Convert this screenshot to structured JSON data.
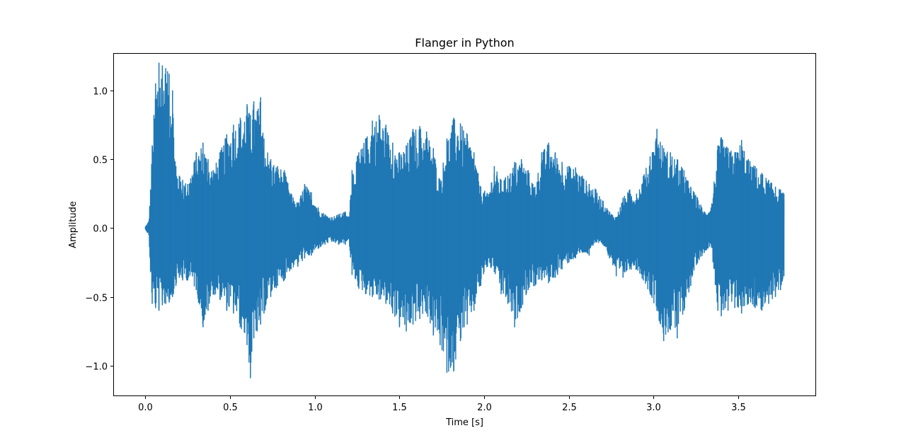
{
  "chart_data": {
    "type": "line",
    "title": "Flanger in Python",
    "xlabel": "Time [s]",
    "ylabel": "Amplitude",
    "xlim": [
      -0.19,
      3.96
    ],
    "ylim": [
      -1.22,
      1.27
    ],
    "x_ticks": [
      0.0,
      0.5,
      1.0,
      1.5,
      2.0,
      2.5,
      3.0,
      3.5
    ],
    "x_tick_labels": [
      "0.0",
      "0.5",
      "1.0",
      "1.5",
      "2.0",
      "2.5",
      "3.0",
      "3.5"
    ],
    "y_ticks": [
      1.0,
      0.5,
      0.0,
      -0.5,
      -1.0
    ],
    "y_tick_labels": [
      "1.0",
      "0.5",
      "0.0",
      "−0.5",
      "−1.0"
    ],
    "grid": false,
    "legend": "none",
    "series": [
      {
        "color": "#1f77b4",
        "envelope": {
          "x": [
            0.0,
            0.02,
            0.03,
            0.04,
            0.06,
            0.08,
            0.1,
            0.12,
            0.14,
            0.16,
            0.18,
            0.2,
            0.22,
            0.25,
            0.3,
            0.34,
            0.37,
            0.4,
            0.44,
            0.48,
            0.52,
            0.56,
            0.6,
            0.62,
            0.64,
            0.66,
            0.68,
            0.7,
            0.74,
            0.78,
            0.82,
            0.86,
            0.9,
            0.94,
            0.98,
            1.02,
            1.06,
            1.1,
            1.14,
            1.18,
            1.2,
            1.22,
            1.26,
            1.3,
            1.34,
            1.38,
            1.42,
            1.46,
            1.5,
            1.54,
            1.58,
            1.62,
            1.66,
            1.7,
            1.74,
            1.78,
            1.82,
            1.86,
            1.9,
            1.94,
            1.98,
            2.02,
            2.06,
            2.1,
            2.14,
            2.18,
            2.22,
            2.26,
            2.3,
            2.34,
            2.38,
            2.42,
            2.46,
            2.5,
            2.54,
            2.58,
            2.62,
            2.66,
            2.7,
            2.74,
            2.78,
            2.82,
            2.86,
            2.9,
            2.94,
            2.98,
            3.02,
            3.06,
            3.1,
            3.14,
            3.18,
            3.22,
            3.26,
            3.3,
            3.34,
            3.38,
            3.4,
            3.44,
            3.48,
            3.52,
            3.56,
            3.6,
            3.64,
            3.68,
            3.72,
            3.75,
            3.77
          ],
          "upper": [
            0.01,
            0.05,
            0.28,
            0.6,
            1.05,
            1.2,
            1.18,
            1.16,
            1.12,
            1.0,
            0.45,
            0.38,
            0.35,
            0.32,
            0.55,
            0.62,
            0.5,
            0.42,
            0.55,
            0.68,
            0.75,
            0.8,
            0.9,
            0.82,
            0.92,
            0.85,
            0.95,
            0.65,
            0.5,
            0.45,
            0.42,
            0.25,
            0.18,
            0.32,
            0.26,
            0.15,
            0.1,
            0.08,
            0.1,
            0.12,
            0.08,
            0.42,
            0.55,
            0.65,
            0.78,
            0.82,
            0.75,
            0.62,
            0.55,
            0.6,
            0.72,
            0.74,
            0.7,
            0.58,
            0.35,
            0.65,
            0.8,
            0.76,
            0.68,
            0.55,
            0.3,
            0.25,
            0.45,
            0.35,
            0.38,
            0.48,
            0.5,
            0.42,
            0.3,
            0.55,
            0.62,
            0.55,
            0.48,
            0.45,
            0.44,
            0.38,
            0.32,
            0.28,
            0.2,
            0.12,
            0.08,
            0.22,
            0.28,
            0.25,
            0.38,
            0.52,
            0.72,
            0.58,
            0.55,
            0.5,
            0.42,
            0.3,
            0.22,
            0.12,
            0.15,
            0.6,
            0.66,
            0.58,
            0.55,
            0.64,
            0.5,
            0.45,
            0.4,
            0.35,
            0.3,
            0.28,
            0.25
          ],
          "lower": [
            -0.01,
            -0.05,
            -0.32,
            -0.55,
            -0.58,
            -0.6,
            -0.56,
            -0.55,
            -0.54,
            -0.5,
            -0.42,
            -0.36,
            -0.38,
            -0.38,
            -0.45,
            -0.72,
            -0.6,
            -0.48,
            -0.52,
            -0.6,
            -0.62,
            -0.72,
            -0.85,
            -1.09,
            -0.8,
            -0.75,
            -0.7,
            -0.62,
            -0.5,
            -0.42,
            -0.38,
            -0.3,
            -0.28,
            -0.22,
            -0.2,
            -0.15,
            -0.12,
            -0.1,
            -0.12,
            -0.12,
            -0.08,
            -0.34,
            -0.44,
            -0.48,
            -0.5,
            -0.52,
            -0.55,
            -0.62,
            -0.72,
            -0.75,
            -0.7,
            -0.66,
            -0.62,
            -0.78,
            -0.85,
            -1.05,
            -1.04,
            -0.82,
            -0.7,
            -0.6,
            -0.42,
            -0.28,
            -0.32,
            -0.48,
            -0.55,
            -0.72,
            -0.58,
            -0.45,
            -0.42,
            -0.38,
            -0.4,
            -0.36,
            -0.3,
            -0.25,
            -0.22,
            -0.18,
            -0.2,
            -0.1,
            -0.12,
            -0.22,
            -0.35,
            -0.36,
            -0.3,
            -0.3,
            -0.38,
            -0.48,
            -0.6,
            -0.82,
            -0.74,
            -0.8,
            -0.6,
            -0.42,
            -0.25,
            -0.18,
            -0.12,
            -0.6,
            -0.64,
            -0.6,
            -0.58,
            -0.62,
            -0.55,
            -0.58,
            -0.6,
            -0.55,
            -0.5,
            -0.45,
            -0.35
          ]
        }
      }
    ]
  }
}
